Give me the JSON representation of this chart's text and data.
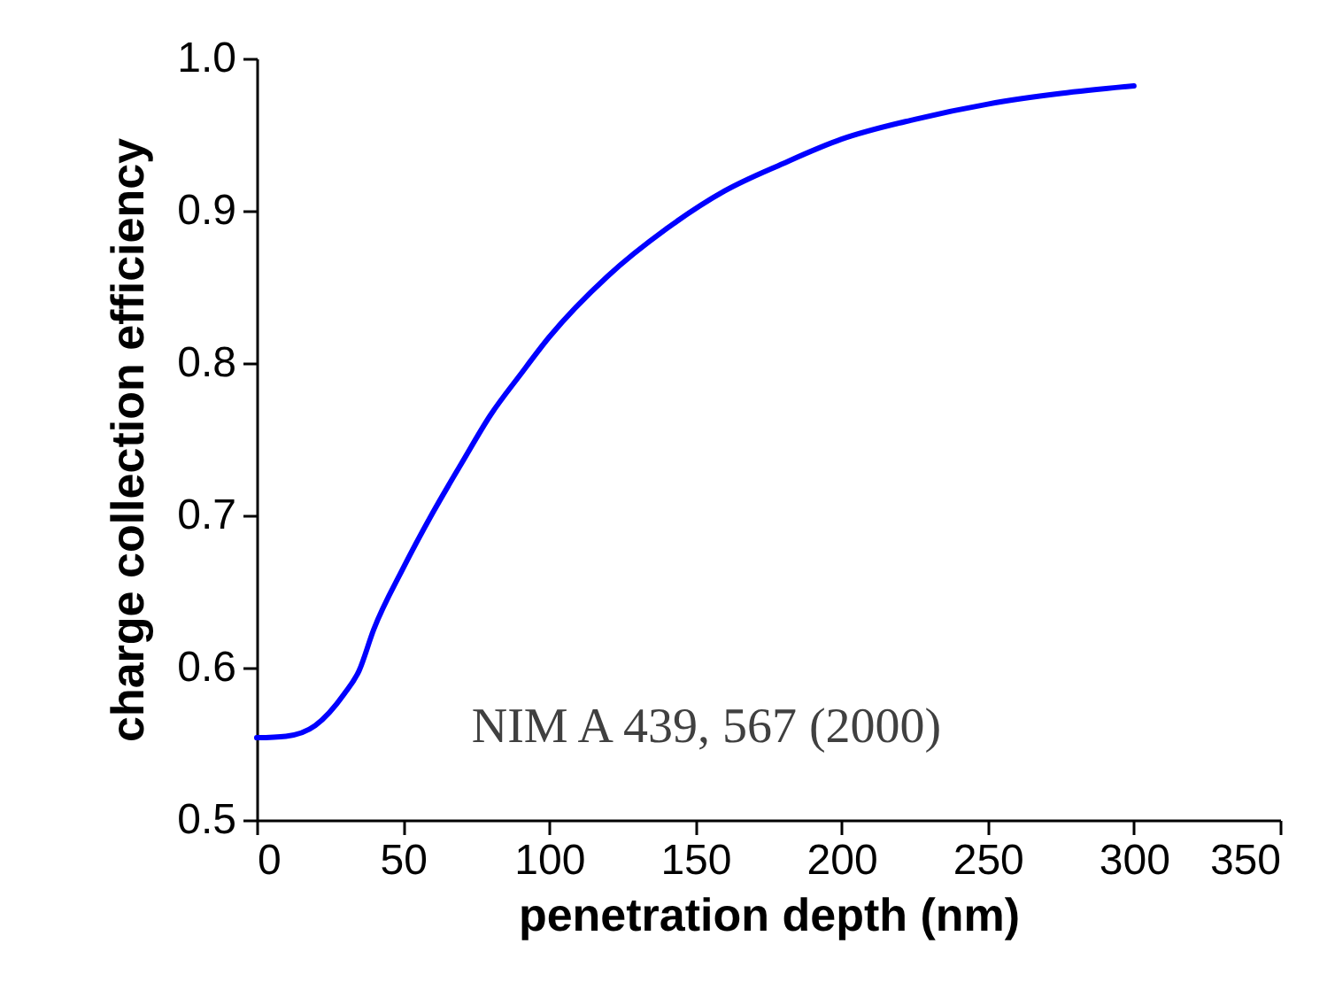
{
  "chart_data": {
    "type": "line",
    "xlabel": "penetration depth (nm)",
    "ylabel": "charge collection efficiency",
    "annotations": [
      "NIM A 439, 567 (2000)"
    ],
    "x": [
      0,
      10,
      20,
      30,
      35,
      40,
      50,
      60,
      70,
      80,
      90,
      100,
      120,
      140,
      160,
      180,
      200,
      225,
      250,
      275,
      300
    ],
    "series": [
      {
        "color": "#0000ff",
        "values": [
          0.554,
          0.555,
          0.562,
          0.583,
          0.598,
          0.625,
          0.665,
          0.701,
          0.734,
          0.766,
          0.792,
          0.817,
          0.857,
          0.888,
          0.913,
          0.931,
          0.947,
          0.96,
          0.97,
          0.977,
          0.982
        ]
      }
    ],
    "xlim": [
      0,
      350
    ],
    "xticks": [
      0,
      50,
      100,
      150,
      200,
      250,
      300,
      350
    ],
    "ylim": [
      0.5,
      1.0
    ],
    "yticks": [
      {
        "value": 0.5,
        "label": "0.5"
      },
      {
        "value": 0.6,
        "label": "0.6"
      },
      {
        "value": 0.7,
        "label": "0.7"
      },
      {
        "value": 0.8,
        "label": "0.8"
      },
      {
        "value": 0.9,
        "label": "0.9"
      },
      {
        "value": 1.0,
        "label": "1.0"
      }
    ],
    "grid": false,
    "legend": false,
    "marker": "none",
    "line_style": "solid"
  }
}
